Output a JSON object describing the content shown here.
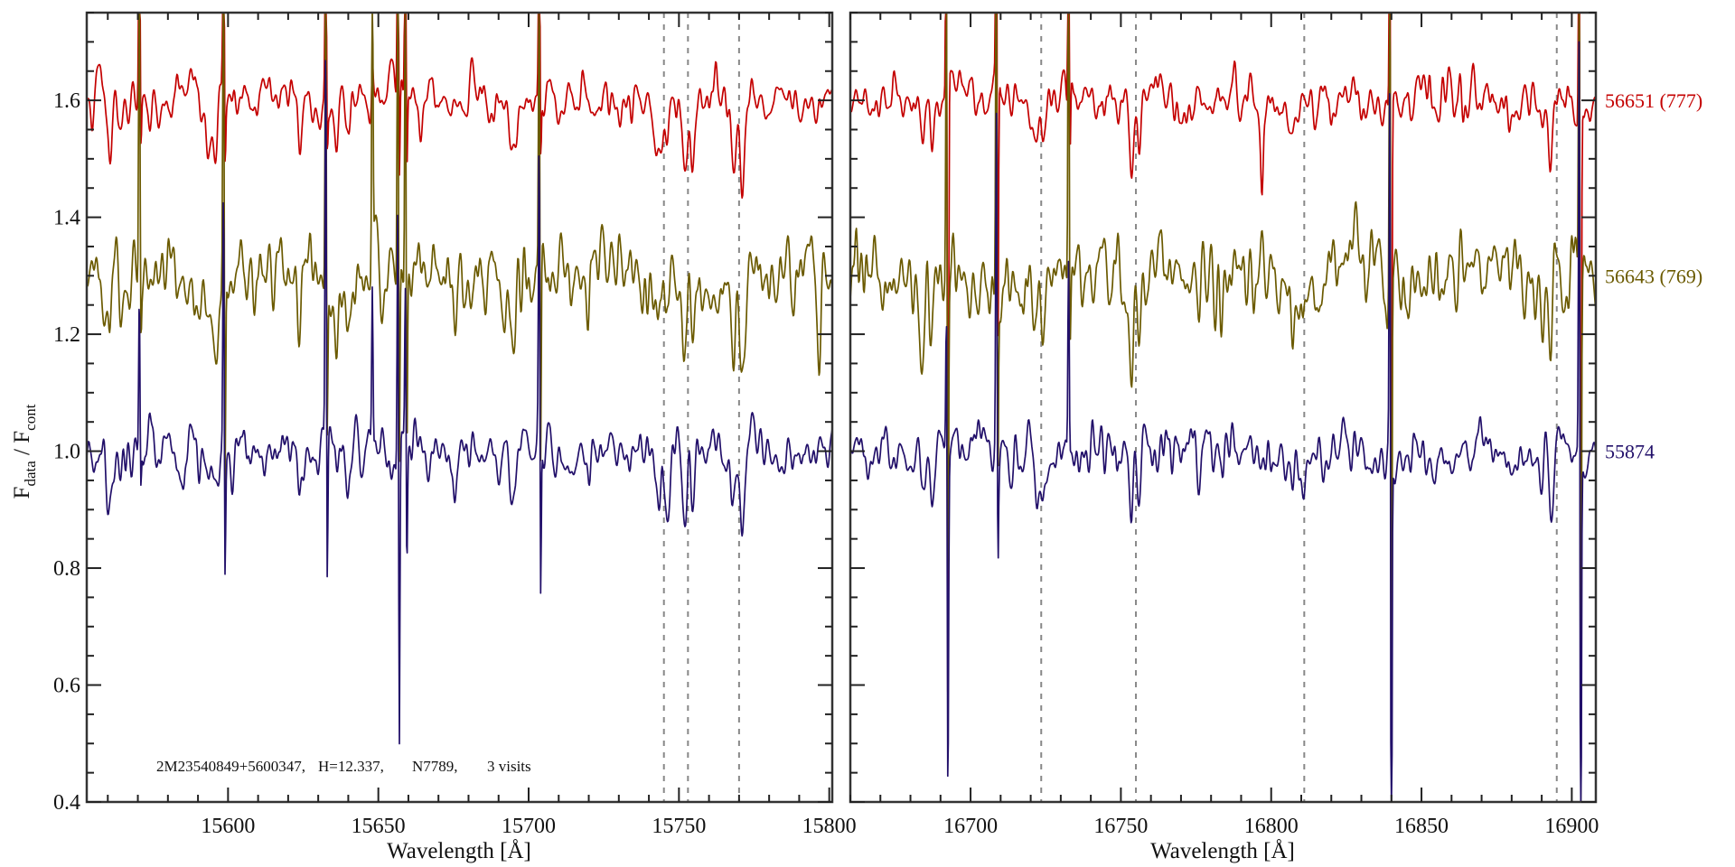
{
  "chart_data": {
    "type": "line",
    "ylabel_main": "F",
    "ylabel_sub1": "data",
    "ylabel_sep": " / F",
    "ylabel_sub2": "cont",
    "xlabel": "Wavelength [Å]",
    "ylim": [
      0.4,
      1.75
    ],
    "yticks": [
      0.4,
      0.6,
      0.8,
      1.0,
      1.2,
      1.4,
      1.6
    ],
    "ytick_labels": [
      "0.4",
      "0.6",
      "0.8",
      "1.0",
      "1.2",
      "1.4",
      "1.6"
    ],
    "annotation": [
      "2M23540849+5600347,",
      "H=12.337,",
      "N7789,",
      "3 visits"
    ],
    "panels": [
      {
        "xlim": [
          15553,
          15801
        ],
        "xticks": [
          15600,
          15650,
          15700,
          15750,
          15800
        ],
        "xtick_labels": [
          "15600",
          "15650",
          "15700",
          "15750",
          "15800"
        ],
        "dashed_lines": [
          15745,
          15753,
          15770
        ],
        "absorption_features": [
          [
            15560.5,
            0.09,
            0.7
          ],
          [
            15564,
            0.05,
            0.6
          ],
          [
            15594,
            0.08,
            1.2
          ],
          [
            15596,
            0.07,
            0.6
          ],
          [
            15624,
            0.09,
            0.7
          ],
          [
            15636,
            0.07,
            0.7
          ],
          [
            15640,
            0.06,
            0.6
          ],
          [
            15676,
            0.05,
            0.8
          ],
          [
            15694.6,
            0.08,
            0.8
          ],
          [
            15743,
            0.09,
            0.9
          ],
          [
            15746,
            0.06,
            0.6
          ],
          [
            15752,
            0.12,
            0.7
          ],
          [
            15754.5,
            0.1,
            0.6
          ],
          [
            15768,
            0.12,
            0.8
          ],
          [
            15771,
            0.12,
            0.7
          ]
        ],
        "sky_residuals": [
          {
            "w": 15570.5,
            "amp": {
              "red": [
                0.6,
                -0.12
              ],
              "olive": [
                0.7,
                -0.12
              ],
              "navy": [
                0.27,
                -0.1
              ]
            }
          },
          {
            "w": 15598.5,
            "amp": {
              "red": [
                0.6,
                -0.15
              ],
              "olive": [
                0.7,
                -0.45
              ],
              "navy": [
                0.5,
                -0.22
              ]
            }
          },
          {
            "w": 15632.5,
            "amp": {
              "red": [
                0.5,
                -0.12
              ],
              "olive": [
                0.6,
                -0.3
              ],
              "navy": [
                0.75,
                -0.28
              ]
            }
          },
          {
            "w": 15648,
            "amp": {
              "red": [
                0.05,
                0
              ],
              "olive": [
                0.55,
                0
              ],
              "navy": [
                0.28,
                0
              ]
            }
          },
          {
            "w": 15656.5,
            "amp": {
              "red": [
                0.6,
                -0.2
              ],
              "olive": [
                0.7,
                -0.4
              ],
              "navy": [
                0.5,
                -0.55
              ]
            }
          },
          {
            "w": 15659,
            "amp": {
              "red": [
                0.6,
                -0.15
              ],
              "olive": [
                0.6,
                -0.35
              ],
              "navy": [
                0.3,
                -0.22
              ]
            }
          },
          {
            "w": 15703.5,
            "amp": {
              "red": [
                0.6,
                -0.15
              ],
              "olive": [
                0.6,
                -0.4
              ],
              "navy": [
                0.5,
                -0.33
              ]
            }
          }
        ]
      },
      {
        "xlim": [
          16660,
          16908
        ],
        "xticks": [
          16700,
          16750,
          16800,
          16850,
          16900
        ],
        "xtick_labels": [
          "16700",
          "16750",
          "16800",
          "16850",
          "16900"
        ],
        "dashed_lines": [
          16723.5,
          16755,
          16811,
          16895
        ],
        "absorption_features": [
          [
            16684,
            0.09,
            0.7
          ],
          [
            16687,
            0.08,
            0.6
          ],
          [
            16721.6,
            0.08,
            0.8
          ],
          [
            16724,
            0.06,
            0.6
          ],
          [
            16753.6,
            0.12,
            0.7
          ],
          [
            16756,
            0.09,
            0.6
          ],
          [
            16797,
            0.0,
            0.5
          ],
          [
            16808,
            0.04,
            3.0
          ],
          [
            16890,
            0.08,
            0.7
          ],
          [
            16893,
            0.08,
            0.6
          ]
        ],
        "sky_residuals": [
          {
            "w": 16692,
            "amp": {
              "red": [
                0.6,
                -1.2
              ],
              "olive": [
                0.6,
                -0.6
              ],
              "navy": [
                0.3,
                -0.6
              ]
            }
          },
          {
            "w": 16708.6,
            "amp": {
              "red": [
                0.7,
                -0.6
              ],
              "olive": [
                0.7,
                -0.4
              ],
              "navy": [
                0.6,
                -0.2
              ]
            }
          },
          {
            "w": 16732.6,
            "amp": {
              "red": [
                0.6,
                -0.15
              ],
              "olive": [
                0.7,
                -0.1
              ],
              "navy": [
                0.35,
                0
              ]
            }
          },
          {
            "w": 16839.5,
            "amp": {
              "red": [
                0.6,
                -1.0
              ],
              "olive": [
                0.7,
                -0.9
              ],
              "navy": [
                0.7,
                -1.0
              ]
            }
          },
          {
            "w": 16902.5,
            "amp": {
              "red": [
                0.8,
                -1.2
              ],
              "olive": [
                0.8,
                -1.0
              ],
              "navy": [
                0.8,
                -1.0
              ]
            }
          }
        ]
      }
    ],
    "series": [
      {
        "key": "red",
        "name": "56651 (777)",
        "color": "#c40000",
        "offset": 1.6,
        "noise": 0.022,
        "seed": 11,
        "extra": [
          [
            16797,
            0.12,
            0.4
          ]
        ]
      },
      {
        "key": "olive",
        "name": "56643 (769)",
        "color": "#6b5a00",
        "offset": 1.3,
        "noise": 0.035,
        "seed": 23,
        "extra": []
      },
      {
        "key": "navy",
        "name": "55874",
        "color": "#22106a",
        "offset": 1.0,
        "noise": 0.024,
        "seed": 37,
        "extra": []
      }
    ]
  }
}
